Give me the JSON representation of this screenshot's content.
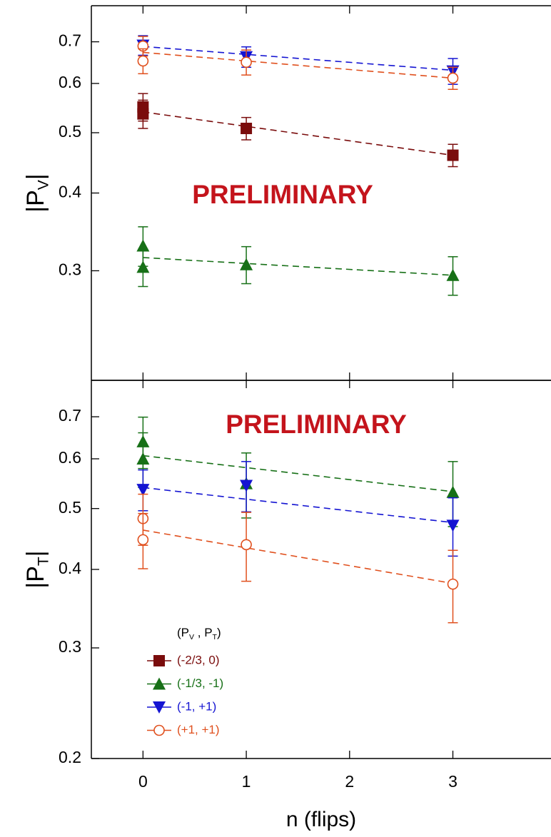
{
  "chart_data": [
    {
      "type": "scatter",
      "y_scale": "log",
      "annotation": "PRELIMINARY",
      "ylabel": [
        "|P",
        "V",
        "|"
      ],
      "xlim": [
        -0.5,
        3.95
      ],
      "ylim": [
        0.2,
        0.8
      ],
      "yticks": [
        0.3,
        0.4,
        0.5,
        0.6,
        0.7
      ],
      "series": [
        {
          "color": "#7a0c0c",
          "marker": "square",
          "x": [
            0,
            0,
            1,
            3
          ],
          "values": [
            0.55,
            0.536,
            0.508,
            0.46
          ],
          "errors": [
            0.028,
            0.028,
            0.021,
            0.019
          ],
          "fit": {
            "x": [
              0,
              3
            ],
            "values": [
              0.54,
              0.46
            ]
          }
        },
        {
          "color": "#177017",
          "marker": "triangle-up",
          "x": [
            0,
            0,
            1,
            3
          ],
          "values": [
            0.329,
            0.304,
            0.307,
            0.295
          ],
          "errors": [
            0.024,
            0.021,
            0.021,
            0.021
          ],
          "fit": {
            "x": [
              0,
              3
            ],
            "values": [
              0.315,
              0.295
            ]
          }
        },
        {
          "color": "#1414d2",
          "marker": "triangle-down",
          "x": [
            0,
            1,
            3
          ],
          "values": [
            0.691,
            0.662,
            0.628
          ],
          "errors": [
            0.025,
            0.025,
            0.03
          ],
          "fit": {
            "x": [
              0,
              3
            ],
            "values": [
              0.688,
              0.63
            ]
          }
        },
        {
          "color": "#e0501e",
          "marker": "circle",
          "x": [
            0,
            0,
            1,
            3
          ],
          "values": [
            0.689,
            0.652,
            0.649,
            0.612
          ],
          "errors": [
            0.025,
            0.03,
            0.03,
            0.025
          ],
          "fit": {
            "x": [
              0,
              3
            ],
            "values": [
              0.673,
              0.612
            ]
          }
        }
      ]
    },
    {
      "type": "scatter",
      "y_scale": "log",
      "annotation": "PRELIMINARY",
      "ylabel": [
        "|P",
        "T",
        "|"
      ],
      "xlabel": "n (flips)",
      "xlim": [
        -0.5,
        3.95
      ],
      "ylim": [
        0.2,
        0.8
      ],
      "xticks": [
        0,
        1,
        2,
        3
      ],
      "yticks": [
        0.2,
        0.3,
        0.4,
        0.5,
        0.6,
        0.7
      ],
      "series": [
        {
          "color": "#177017",
          "marker": "triangle-up",
          "x": [
            0,
            0,
            1,
            3
          ],
          "values": [
            0.639,
            0.6,
            0.548,
            0.531
          ],
          "errors": [
            0.06,
            0.06,
            0.065,
            0.063
          ],
          "fit": {
            "x": [
              0,
              3
            ],
            "values": [
              0.607,
              0.532
            ]
          }
        },
        {
          "color": "#1414d2",
          "marker": "triangle-down",
          "x": [
            0,
            1,
            3
          ],
          "values": [
            0.536,
            0.544,
            0.47
          ],
          "errors": [
            0.04,
            0.05,
            0.05
          ],
          "fit": {
            "x": [
              0,
              3
            ],
            "values": [
              0.54,
              0.475
            ]
          }
        },
        {
          "color": "#e0501e",
          "marker": "circle",
          "x": [
            0,
            0,
            1,
            3
          ],
          "values": [
            0.482,
            0.446,
            0.438,
            0.379
          ],
          "errors": [
            0.045,
            0.045,
            0.055,
            0.05
          ],
          "fit": {
            "x": [
              0,
              3
            ],
            "values": [
              0.462,
              0.38
            ]
          }
        }
      ],
      "legend": {
        "title": [
          "(P",
          "V",
          " ,  P",
          "T",
          ")"
        ],
        "entries": [
          {
            "name": "(-2/3, 0)",
            "color": "#7a0c0c",
            "marker": "square"
          },
          {
            "name": "(-1/3, -1)",
            "color": "#177017",
            "marker": "triangle-up"
          },
          {
            "name": "(-1, +1)",
            "color": "#1414d2",
            "marker": "triangle-down"
          },
          {
            "name": "(+1, +1)",
            "color": "#e0501e",
            "marker": "circle"
          }
        ]
      }
    }
  ]
}
